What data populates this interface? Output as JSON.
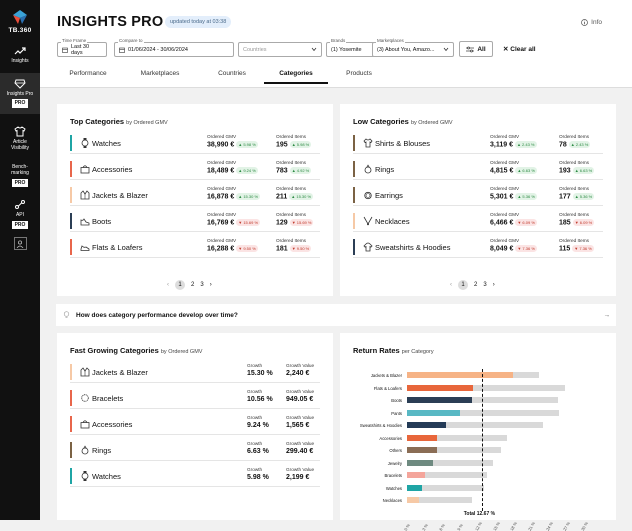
{
  "brand": {
    "name": "TB.360"
  },
  "sidebar": {
    "items": [
      {
        "label": "Insights",
        "icon": "trending-up-icon"
      },
      {
        "label": "Insights Pro",
        "badge": "PRO",
        "icon": "diamond-icon"
      },
      {
        "label": "Article Visibility",
        "icon": "shirt-icon"
      },
      {
        "label": "Bench-marking",
        "badge": "PRO",
        "icon": "benchmark-icon"
      },
      {
        "label": "API",
        "badge": "PRO",
        "icon": "api-icon"
      }
    ]
  },
  "header": {
    "title": "INSIGHTS PRO",
    "updated": "updated today at 03:38",
    "info": "Info"
  },
  "filters": {
    "timeframe": {
      "label": "Time Frame",
      "value": "Last 30 days"
    },
    "compare": {
      "label": "Compare to",
      "value": "01/06/2024 - 30/06/2024"
    },
    "countries": {
      "placeholder": "Countries"
    },
    "brands": {
      "label": "Brands",
      "value": "(1) Yosemite"
    },
    "marketplaces": {
      "label": "Marketplaces",
      "value": "(3) About You, Amazo..."
    },
    "all_label": "All",
    "clear_label": "Clear all"
  },
  "tabs": [
    "Performance",
    "Marketplaces",
    "Countries",
    "Categories",
    "Products"
  ],
  "active_tab": "Categories",
  "top_categories": {
    "title": "Top Categories",
    "subtitle": "by Ordered GMV",
    "col1": "Ordered GMV",
    "col2": "Ordered Items",
    "rows": [
      {
        "name": "Watches",
        "color": "#1fa5a5",
        "icon": "watch-icon",
        "gmv": "38,990 €",
        "gmv_change": "▲ 5.98 %",
        "gmv_dir": "up",
        "items": "195",
        "items_change": "▲ 5.98 %",
        "items_dir": "up"
      },
      {
        "name": "Accessories",
        "color": "#e8664b",
        "icon": "bag-icon",
        "gmv": "18,489 €",
        "gmv_change": "▲ 9.24 %",
        "gmv_dir": "up",
        "items": "783",
        "items_change": "▲ 4.92 %",
        "items_dir": "up"
      },
      {
        "name": "Jackets & Blazer",
        "color": "#f6c9a6",
        "icon": "jacket-icon",
        "gmv": "16,878 €",
        "gmv_change": "▲ 15.30 %",
        "gmv_dir": "up",
        "items": "211",
        "items_change": "▲ 15.30 %",
        "items_dir": "up"
      },
      {
        "name": "Boots",
        "color": "#2b3e55",
        "icon": "boot-icon",
        "gmv": "16,769 €",
        "gmv_change": "▼ 15.69 %",
        "gmv_dir": "down",
        "items": "129",
        "items_change": "▼ 15.69 %",
        "items_dir": "down"
      },
      {
        "name": "Flats & Loafers",
        "color": "#e8664b",
        "icon": "shoe-icon",
        "gmv": "16,288 €",
        "gmv_change": "▼ 9.50 %",
        "gmv_dir": "down",
        "items": "181",
        "items_change": "▼ 9.50 %",
        "items_dir": "down"
      }
    ],
    "pages": [
      "1",
      "2",
      "3"
    ]
  },
  "low_categories": {
    "title": "Low Categories",
    "subtitle": "by Ordered GMV",
    "col1": "Ordered GMV",
    "col2": "Ordered Items",
    "rows": [
      {
        "name": "Shirts & Blouses",
        "color": "#7b6244",
        "icon": "shirt-icon",
        "gmv": "3,119 €",
        "gmv_change": "▲ 2.43 %",
        "gmv_dir": "up",
        "items": "78",
        "items_change": "▲ 2.43 %",
        "items_dir": "up"
      },
      {
        "name": "Rings",
        "color": "#7b6244",
        "icon": "ring-icon",
        "gmv": "4,815 €",
        "gmv_change": "▲ 6.63 %",
        "gmv_dir": "up",
        "items": "193",
        "items_change": "▲ 6.63 %",
        "items_dir": "up"
      },
      {
        "name": "Earrings",
        "color": "#7b6244",
        "icon": "earring-icon",
        "gmv": "5,301 €",
        "gmv_change": "▲ 5.36 %",
        "gmv_dir": "up",
        "items": "177",
        "items_change": "▲ 5.36 %",
        "items_dir": "up"
      },
      {
        "name": "Necklaces",
        "color": "#f6c9a6",
        "icon": "necklace-icon",
        "gmv": "6,466 €",
        "gmv_change": "▼ 6.09 %",
        "gmv_dir": "down",
        "items": "185",
        "items_change": "▼ 6.09 %",
        "items_dir": "down"
      },
      {
        "name": "Sweatshirts & Hoodies",
        "color": "#2b3e55",
        "icon": "hoodie-icon",
        "gmv": "8,049 €",
        "gmv_change": "▼ 7.36 %",
        "gmv_dir": "down",
        "items": "115",
        "items_change": "▼ 7.36 %",
        "items_dir": "down"
      }
    ],
    "pages": [
      "1",
      "2",
      "3"
    ]
  },
  "question": {
    "text": "How does category performance develop over time?"
  },
  "fast_growing": {
    "title": "Fast Growing Categories",
    "subtitle": "by Ordered GMV",
    "col1": "Growth",
    "col2": "Growth Value",
    "rows": [
      {
        "name": "Jackets & Blazer",
        "color": "#f6c9a6",
        "icon": "jacket-icon",
        "growth": "15.30 %",
        "value": "2,240 €"
      },
      {
        "name": "Bracelets",
        "color": "#e8664b",
        "icon": "bracelet-icon",
        "growth": "10.56 %",
        "value": "949.05 €"
      },
      {
        "name": "Accessories",
        "color": "#e8664b",
        "icon": "bag-icon",
        "growth": "9.24 %",
        "value": "1,565 €"
      },
      {
        "name": "Rings",
        "color": "#7b6244",
        "icon": "ring-icon",
        "growth": "6.63 %",
        "value": "299.40 €"
      },
      {
        "name": "Watches",
        "color": "#1fa5a5",
        "icon": "watch-icon",
        "growth": "5.98 %",
        "value": "2,199 €"
      }
    ]
  },
  "return_rates": {
    "title": "Return Rates",
    "subtitle": "per Category",
    "total_label": "Total 12.67 %"
  },
  "chart_data": {
    "type": "bar",
    "title": "Return Rates",
    "categories": [
      "Jackets & Blazer",
      "Flats & Loafers",
      "Boots",
      "Pants",
      "Sweatshirts & Hoodies",
      "Accessories",
      "Others",
      "Jewelry",
      "Bracelets",
      "Watches",
      "Necklaces"
    ],
    "series": [
      {
        "values": [
          18.0,
          11.2,
          11.0,
          9.0,
          6.6,
          5.1,
          5.0,
          4.4,
          3.1,
          2.6,
          2.0
        ]
      },
      {
        "values": [
          22.4,
          26.8,
          25.6,
          25.8,
          23.0,
          17.0,
          16.0,
          14.6,
          13.6,
          13.0,
          11.0
        ]
      }
    ],
    "colors": [
      "#f6b386",
      "#e8663b",
      "#2b3e55",
      "#58b8c4",
      "#243b57",
      "#e8663b",
      "#8a6d55",
      "#6e8a80",
      "#f4a59b",
      "#1fa5a5",
      "#f6c9a6"
    ],
    "reference": 12.67,
    "xlim": [
      0,
      30
    ],
    "xticks": [
      "0 %",
      "3 %",
      "6 %",
      "9 %",
      "12 %",
      "15 %",
      "18 %",
      "21 %",
      "24 %",
      "27 %",
      "30 %"
    ]
  }
}
